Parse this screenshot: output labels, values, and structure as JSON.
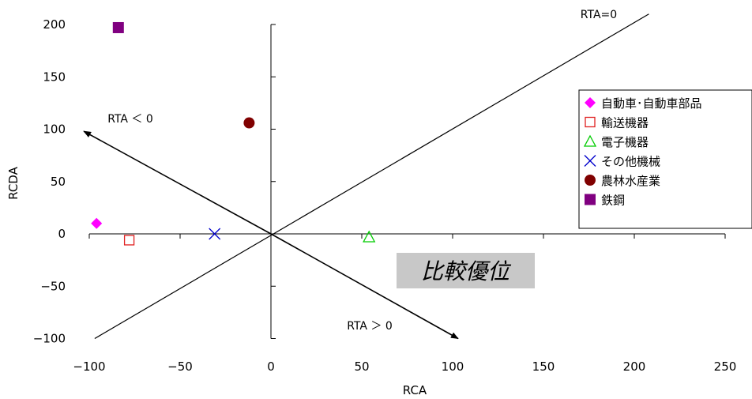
{
  "chart_data": {
    "type": "scatter",
    "xlabel": "RCA",
    "ylabel": "RCDA",
    "xlim": [
      -100,
      250
    ],
    "ylim": [
      -100,
      200
    ],
    "x_ticks": [
      "−100",
      "−50",
      "0",
      "50",
      "100",
      "150",
      "200",
      "250"
    ],
    "x_tick_values": [
      -100,
      -50,
      0,
      50,
      100,
      150,
      200,
      250
    ],
    "y_ticks": [
      "200",
      "150",
      "100",
      "50",
      "0",
      "−50",
      "−100"
    ],
    "y_tick_values": [
      200,
      150,
      100,
      50,
      0,
      -50,
      -100
    ],
    "grid": false,
    "legend_position": "right",
    "series": [
      {
        "name": "自動車･自動車部品",
        "marker": "diamond-filled",
        "color": "#ff00ff",
        "x": -96,
        "y": 10
      },
      {
        "name": "輸送機器",
        "marker": "square-open",
        "color": "#e02020",
        "x": -78,
        "y": -6
      },
      {
        "name": "電子機器",
        "marker": "triangle-open",
        "color": "#00cc00",
        "x": 54,
        "y": -3
      },
      {
        "name": "その他機械",
        "marker": "x",
        "color": "#0000cc",
        "x": -31,
        "y": 0
      },
      {
        "name": "農林水産業",
        "marker": "circle-filled",
        "color": "#800000",
        "x": -12,
        "y": 106
      },
      {
        "name": "鉄鋼",
        "marker": "square-filled",
        "color": "#800080",
        "x": -84,
        "y": 197
      }
    ],
    "lines": [
      {
        "label": "RTA=0",
        "from": [
          -97,
          -100
        ],
        "to": [
          208,
          210
        ],
        "arrow": false
      },
      {
        "label": "RTA ＜ 0",
        "from": [
          0,
          0
        ],
        "to": [
          -103,
          98
        ],
        "arrow": true
      },
      {
        "label": "RTA ＞ 0",
        "from": [
          0,
          0
        ],
        "to": [
          103,
          -100
        ],
        "arrow": true
      }
    ],
    "annotation_box": {
      "text": "比較優位",
      "fill": "#c8c8c8"
    }
  }
}
